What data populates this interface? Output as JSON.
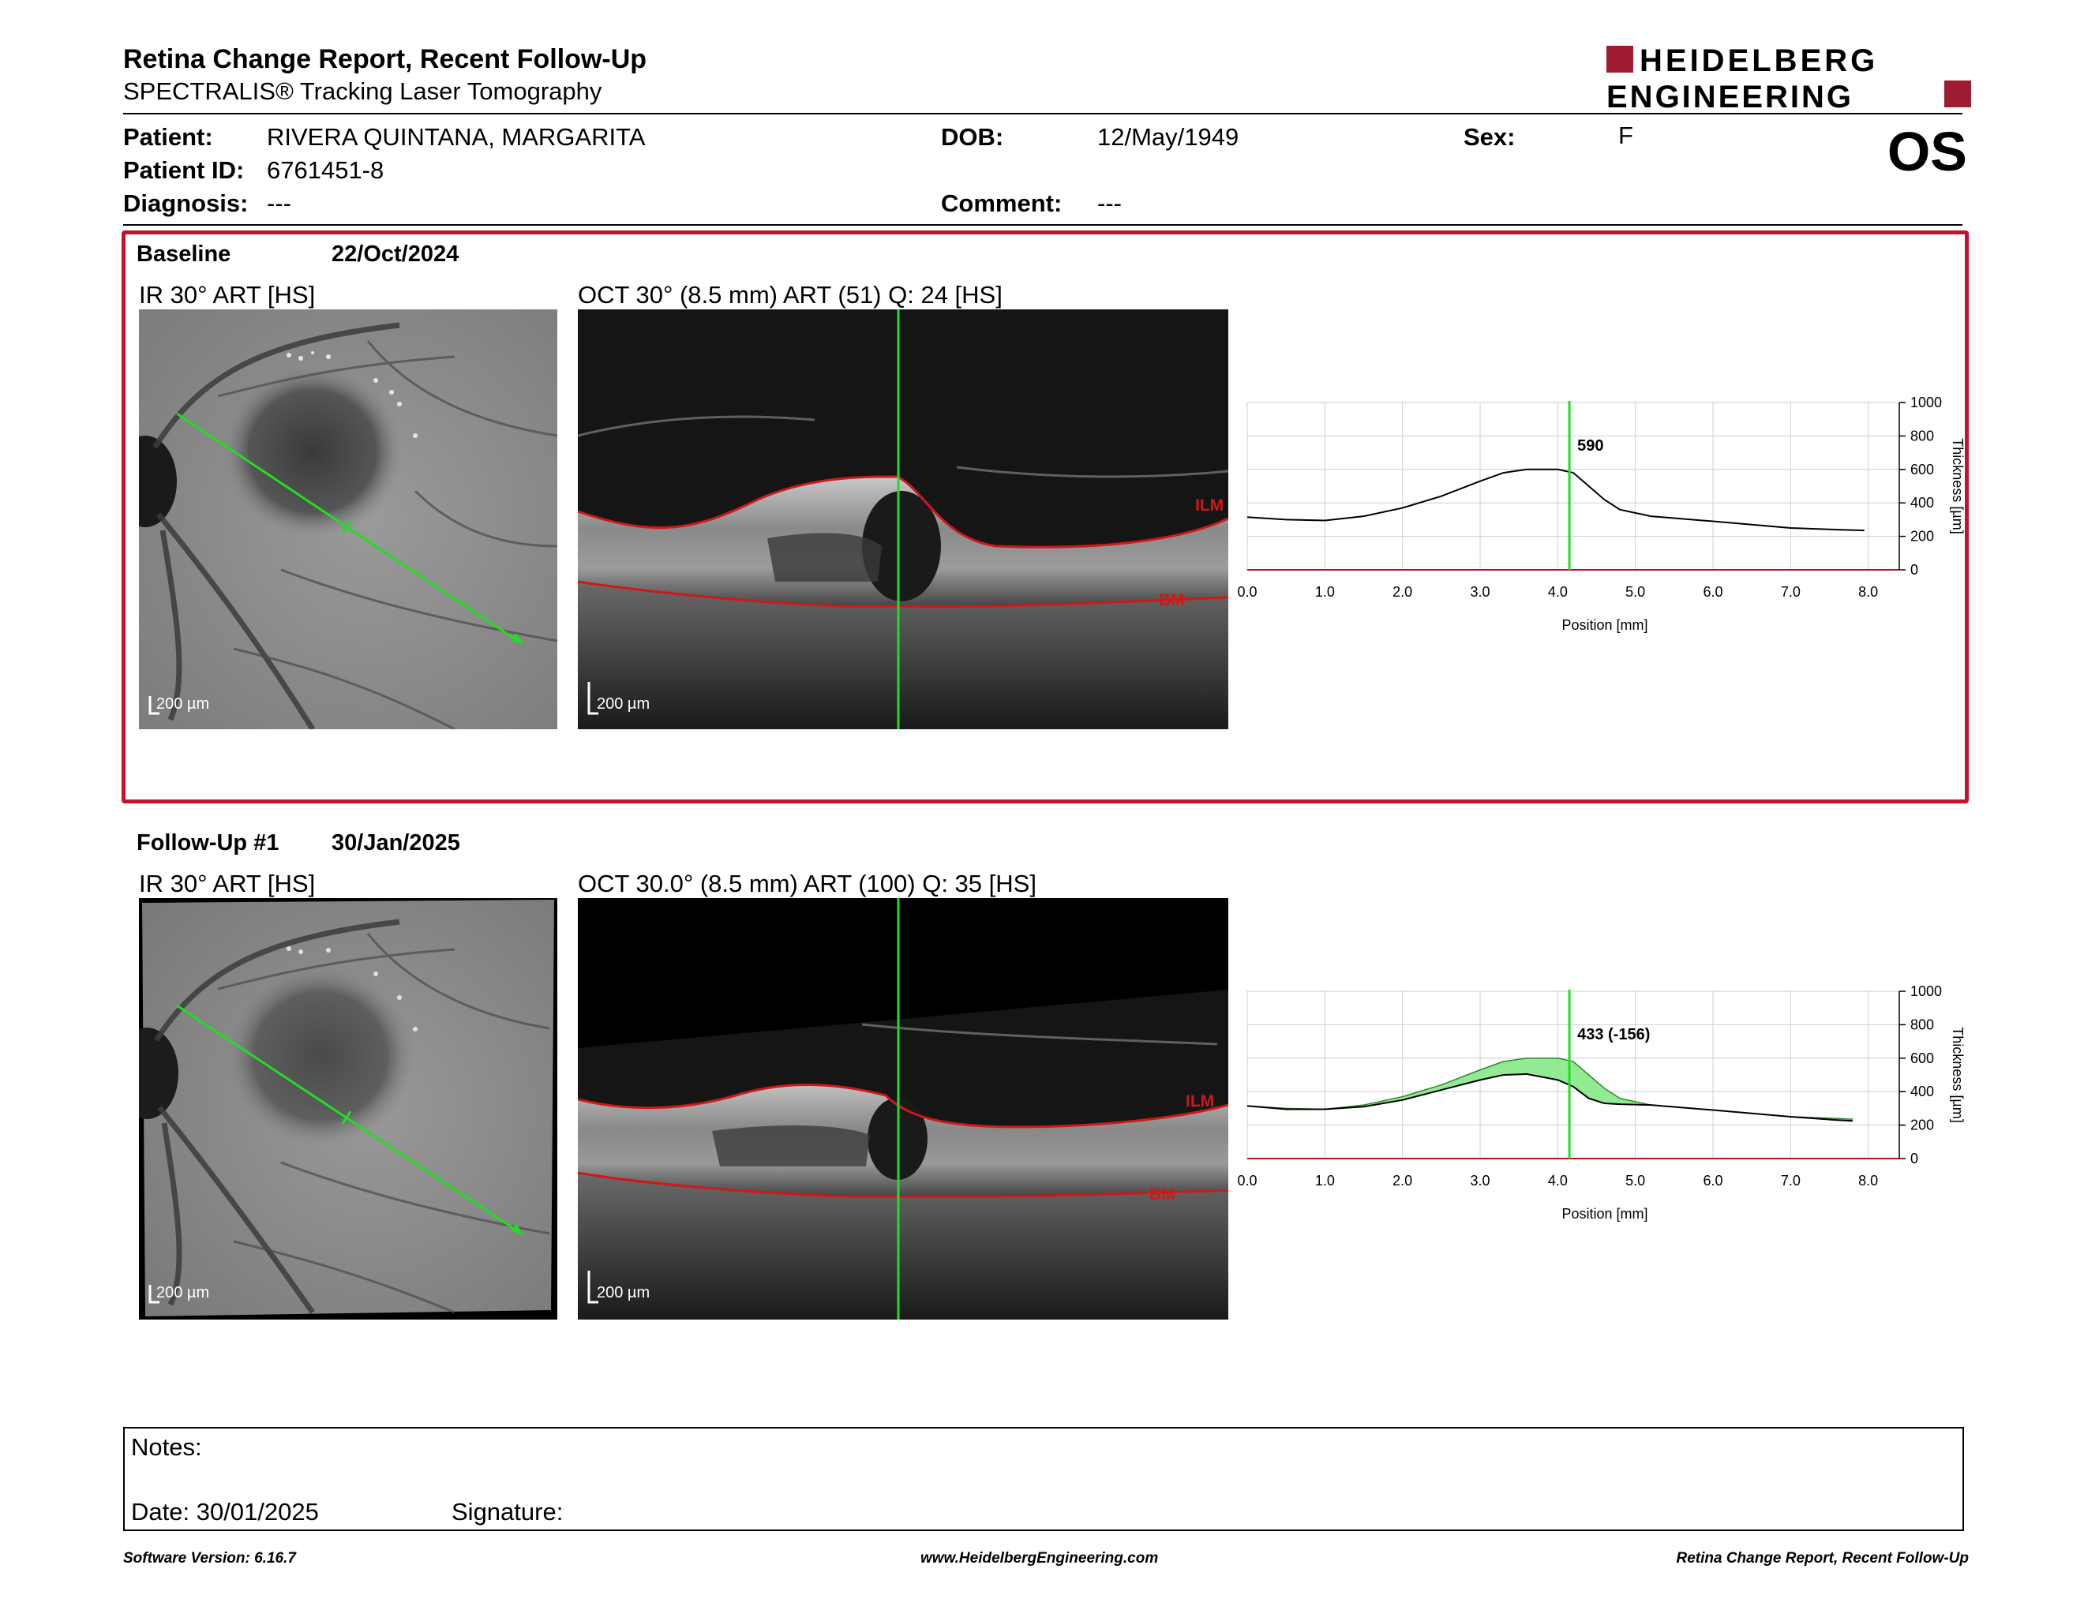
{
  "report": {
    "title": "Retina Change Report, Recent Follow-Up",
    "subtitle": "SPECTRALIS® Tracking Laser Tomography",
    "logo_line1": "HEIDELBERG",
    "logo_line2": "ENGINEERING",
    "eye": "OS"
  },
  "patient": {
    "name_label": "Patient:",
    "name": "RIVERA QUINTANA, MARGARITA",
    "id_label": "Patient ID:",
    "id": "6761451-8",
    "diagnosis_label": "Diagnosis:",
    "diagnosis": "---",
    "dob_label": "DOB:",
    "dob": "12/May/1949",
    "comment_label": "Comment:",
    "comment": "---",
    "sex_label": "Sex:",
    "sex": "F"
  },
  "baseline": {
    "label": "Baseline",
    "date": "22/Oct/2024",
    "ir_label": "IR 30° ART [HS]",
    "oct_label": "OCT 30° (8.5 mm) ART (51) Q: 24 [HS]",
    "scale_ir": "200 µm",
    "scale_oct": "200 µm",
    "ilm": "ILM",
    "bm": "BM"
  },
  "followup": {
    "label": "Follow-Up #1",
    "date": "30/Jan/2025",
    "ir_label": "IR 30° ART [HS]",
    "oct_label": "OCT 30.0° (8.5 mm) ART (100) Q: 35 [HS]",
    "scale_ir": "200 µm",
    "scale_oct": "200 µm",
    "ilm": "ILM",
    "bm": "BM"
  },
  "chart_data": [
    {
      "type": "line",
      "xlabel": "Position [mm]",
      "ylabel": "Thickness [µm]",
      "xlim": [
        0,
        8.4
      ],
      "ylim": [
        0,
        1000
      ],
      "xticks": [
        "0.0",
        "1.0",
        "2.0",
        "3.0",
        "4.0",
        "5.0",
        "6.0",
        "7.0",
        "8.0"
      ],
      "yticks": [
        "0",
        "200",
        "400",
        "600",
        "800",
        "1000"
      ],
      "marker_x": 4.15,
      "marker_label": "590",
      "series": [
        {
          "x": [
            0,
            0.5,
            1.0,
            1.5,
            2.0,
            2.5,
            3.0,
            3.3,
            3.6,
            4.0,
            4.2,
            4.4,
            4.6,
            4.8,
            5.2,
            6.0,
            7.0,
            7.6,
            7.95
          ],
          "y": [
            315,
            300,
            295,
            320,
            370,
            440,
            530,
            580,
            600,
            600,
            580,
            500,
            420,
            360,
            320,
            290,
            250,
            240,
            235
          ]
        }
      ]
    },
    {
      "type": "area",
      "xlabel": "Position [mm]",
      "ylabel": "Thickness [µm]",
      "xlim": [
        0,
        8.4
      ],
      "ylim": [
        0,
        1000
      ],
      "xticks": [
        "0.0",
        "1.0",
        "2.0",
        "3.0",
        "4.0",
        "5.0",
        "6.0",
        "7.0",
        "8.0"
      ],
      "yticks": [
        "0",
        "200",
        "400",
        "600",
        "800",
        "1000"
      ],
      "marker_x": 4.15,
      "marker_label": "433 (-156)",
      "series": [
        {
          "x": [
            0,
            0.5,
            1.0,
            1.5,
            2.0,
            2.5,
            3.0,
            3.3,
            3.6,
            4.0,
            4.2,
            4.4,
            4.6,
            4.8,
            5.2,
            6.0,
            7.0,
            7.6,
            7.8
          ],
          "y": [
            315,
            295,
            295,
            310,
            350,
            410,
            470,
            500,
            505,
            470,
            430,
            360,
            330,
            325,
            320,
            290,
            250,
            230,
            225
          ]
        },
        {
          "x": [
            0,
            0.5,
            1.0,
            1.5,
            2.0,
            2.5,
            3.0,
            3.3,
            3.6,
            4.0,
            4.2,
            4.4,
            4.6,
            4.8,
            5.2,
            6.0,
            7.0,
            7.6,
            7.8
          ],
          "y": [
            315,
            300,
            295,
            320,
            370,
            440,
            530,
            580,
            600,
            600,
            580,
            500,
            420,
            360,
            320,
            290,
            250,
            240,
            235
          ]
        }
      ]
    }
  ],
  "notes": {
    "label": "Notes:",
    "date_label": "Date: 30/01/2025",
    "signature_label": "Signature:"
  },
  "footer": {
    "software": "Software Version: 6.16.7",
    "website": "www.HeidelbergEngineering.com",
    "report": "Retina Change Report, Recent Follow-Up"
  }
}
